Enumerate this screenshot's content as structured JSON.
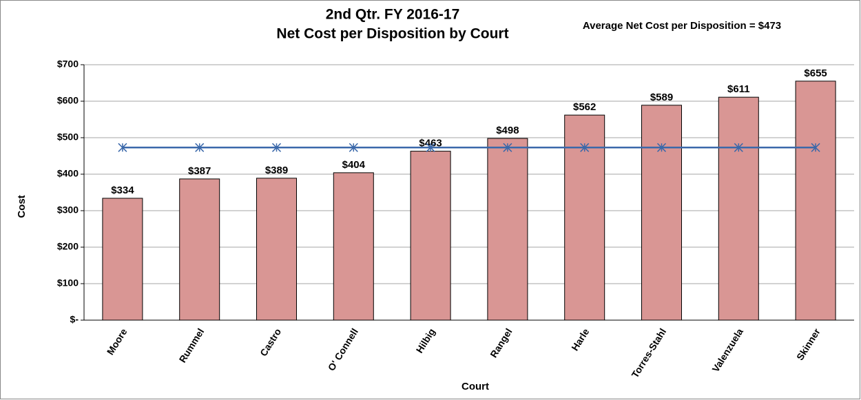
{
  "chart_data": {
    "type": "bar",
    "title": [
      "2nd Qtr. FY 2016-17",
      "Net Cost per Disposition by Court"
    ],
    "annotation": "Average Net Cost per Disposition = $473",
    "x_label": "Court",
    "y_label": "Cost",
    "categories": [
      "Moore",
      "Rummel",
      "Castro",
      "O' Connell",
      "Hilbig",
      "Rangel",
      "Harle",
      "Torres-Stahl",
      "Valenzuela",
      "Skinner"
    ],
    "series": [
      {
        "type": "bar",
        "color": "#d99694",
        "values": [
          334,
          387,
          389,
          404,
          463,
          498,
          562,
          589,
          611,
          655
        ],
        "value_labels": [
          "$334",
          "$387",
          "$389",
          "$404",
          "$463",
          "$498",
          "$562",
          "$589",
          "$611",
          "$655"
        ]
      },
      {
        "type": "line",
        "color": "#3a68aa",
        "values": [
          473,
          473,
          473,
          473,
          473,
          473,
          473,
          473,
          473,
          473
        ]
      }
    ],
    "ylim": [
      0,
      700
    ],
    "yticks": [
      {
        "value": 0,
        "label": "$-"
      },
      {
        "value": 100,
        "label": "$100"
      },
      {
        "value": 200,
        "label": "$200"
      },
      {
        "value": 300,
        "label": "$300"
      },
      {
        "value": 400,
        "label": "$400"
      },
      {
        "value": 500,
        "label": "$500"
      },
      {
        "value": 600,
        "label": "$600"
      },
      {
        "value": 700,
        "label": "$700"
      }
    ],
    "grid": true
  }
}
